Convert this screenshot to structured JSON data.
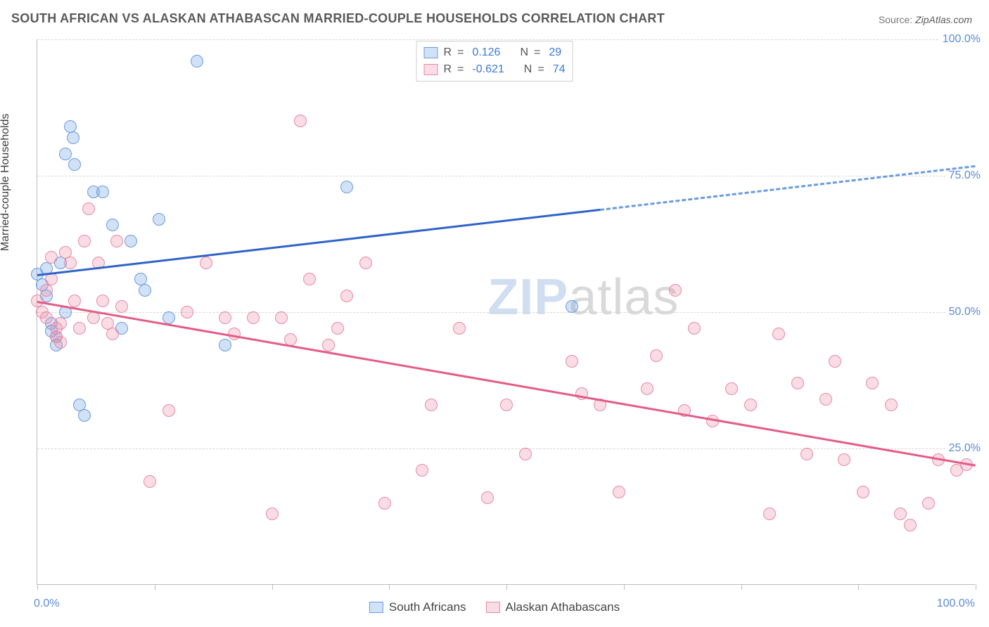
{
  "title": "SOUTH AFRICAN VS ALASKAN ATHABASCAN MARRIED-COUPLE HOUSEHOLDS CORRELATION CHART",
  "source_label": "Source:",
  "source_value": "ZipAtlas.com",
  "ylabel": "Married-couple Households",
  "watermark_a": "ZIP",
  "watermark_b": "atlas",
  "chart": {
    "type": "scatter",
    "xlim": [
      0,
      100
    ],
    "ylim": [
      0,
      100
    ],
    "x_ticks": [
      0,
      12.5,
      25,
      37.5,
      50,
      62.5,
      75,
      87.5,
      100
    ],
    "y_gridlines": [
      25,
      50,
      75,
      100
    ],
    "y_tick_labels": [
      "25.0%",
      "50.0%",
      "75.0%",
      "100.0%"
    ],
    "x_min_label": "0.0%",
    "x_max_label": "100.0%",
    "background_color": "#ffffff",
    "grid_color": "#d6d6d6",
    "axis_color": "#bcbcbc",
    "tick_label_color": "#5b8ad6",
    "marker_radius": 9,
    "marker_border_width": 1.5,
    "series": [
      {
        "name": "South Africans",
        "fill": "rgba(124,169,230,0.35)",
        "stroke": "#6a9be0",
        "R": "0.126",
        "N": "29",
        "trend": {
          "x1": 0,
          "y1": 57,
          "x2": 60,
          "y2": 69,
          "x2_ext": 100,
          "y2_ext": 77,
          "color": "#2f63c9",
          "dash_color": "#6a9be0"
        },
        "points": [
          [
            0,
            57
          ],
          [
            0.5,
            55
          ],
          [
            1,
            58
          ],
          [
            1,
            53
          ],
          [
            1.5,
            48
          ],
          [
            1.5,
            46.5
          ],
          [
            2,
            45.5
          ],
          [
            2,
            44
          ],
          [
            2.5,
            59
          ],
          [
            3,
            50
          ],
          [
            3,
            79
          ],
          [
            3.5,
            84
          ],
          [
            3.8,
            82
          ],
          [
            4,
            77
          ],
          [
            4.5,
            33
          ],
          [
            5,
            31
          ],
          [
            6,
            72
          ],
          [
            7,
            72
          ],
          [
            8,
            66
          ],
          [
            9,
            47
          ],
          [
            10,
            63
          ],
          [
            11,
            56
          ],
          [
            11.5,
            54
          ],
          [
            13,
            67
          ],
          [
            14,
            49
          ],
          [
            17,
            96
          ],
          [
            20,
            44
          ],
          [
            33,
            73
          ],
          [
            57,
            51
          ]
        ]
      },
      {
        "name": "Alaskan Athabascans",
        "fill": "rgba(236,140,166,0.30)",
        "stroke": "#e78aa5",
        "R": "-0.621",
        "N": "74",
        "trend": {
          "x1": 0,
          "y1": 52,
          "x2": 100,
          "y2": 22,
          "color": "#e45c86"
        },
        "points": [
          [
            0,
            52
          ],
          [
            0.5,
            50
          ],
          [
            1,
            49
          ],
          [
            1,
            54
          ],
          [
            1.5,
            56
          ],
          [
            1.5,
            60
          ],
          [
            2,
            47
          ],
          [
            2,
            45.5
          ],
          [
            2.5,
            44.5
          ],
          [
            2.5,
            48
          ],
          [
            3,
            61
          ],
          [
            3.5,
            59
          ],
          [
            4,
            52
          ],
          [
            4.5,
            47
          ],
          [
            5,
            63
          ],
          [
            5.5,
            69
          ],
          [
            6,
            49
          ],
          [
            6.5,
            59
          ],
          [
            7,
            52
          ],
          [
            7.5,
            48
          ],
          [
            8,
            46
          ],
          [
            8.5,
            63
          ],
          [
            9,
            51
          ],
          [
            12,
            19
          ],
          [
            14,
            32
          ],
          [
            16,
            50
          ],
          [
            18,
            59
          ],
          [
            20,
            49
          ],
          [
            21,
            46
          ],
          [
            23,
            49
          ],
          [
            25,
            13
          ],
          [
            26,
            49
          ],
          [
            27,
            45
          ],
          [
            28,
            85
          ],
          [
            29,
            56
          ],
          [
            31,
            44
          ],
          [
            32,
            47
          ],
          [
            33,
            53
          ],
          [
            35,
            59
          ],
          [
            37,
            15
          ],
          [
            41,
            21
          ],
          [
            42,
            33
          ],
          [
            45,
            47
          ],
          [
            48,
            16
          ],
          [
            50,
            33
          ],
          [
            52,
            24
          ],
          [
            57,
            41
          ],
          [
            58,
            35
          ],
          [
            60,
            33
          ],
          [
            62,
            17
          ],
          [
            65,
            36
          ],
          [
            66,
            42
          ],
          [
            68,
            54
          ],
          [
            69,
            32
          ],
          [
            70,
            47
          ],
          [
            72,
            30
          ],
          [
            74,
            36
          ],
          [
            76,
            33
          ],
          [
            78,
            13
          ],
          [
            79,
            46
          ],
          [
            81,
            37
          ],
          [
            82,
            24
          ],
          [
            84,
            34
          ],
          [
            85,
            41
          ],
          [
            86,
            23
          ],
          [
            88,
            17
          ],
          [
            89,
            37
          ],
          [
            91,
            33
          ],
          [
            92,
            13
          ],
          [
            93,
            11
          ],
          [
            95,
            15
          ],
          [
            96,
            23
          ],
          [
            98,
            21
          ],
          [
            99,
            22
          ]
        ]
      }
    ]
  },
  "legend_top": {
    "r_label": "R",
    "n_label": "N",
    "eq": "="
  },
  "legend_bottom": {
    "items": [
      "South Africans",
      "Alaskan Athabascans"
    ]
  }
}
